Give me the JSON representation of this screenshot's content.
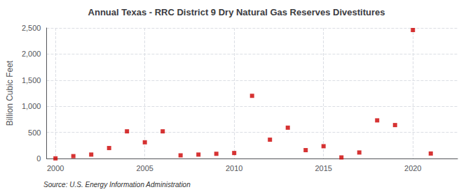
{
  "chart_data": {
    "type": "scatter",
    "title": "Annual Texas - RRC District 9 Dry Natural Gas Reserves Divestitures",
    "ylabel": "Billion Cubic Feet",
    "source": "Source: U.S. Energy Information Administration",
    "x": [
      2000,
      2001,
      2002,
      2003,
      2004,
      2005,
      2006,
      2007,
      2008,
      2009,
      2010,
      2011,
      2012,
      2013,
      2014,
      2015,
      2016,
      2017,
      2018,
      2019,
      2020,
      2021
    ],
    "values": [
      2,
      45,
      75,
      200,
      520,
      310,
      520,
      60,
      75,
      90,
      105,
      1200,
      360,
      590,
      160,
      235,
      20,
      115,
      730,
      640,
      2460,
      95
    ],
    "color": "#cc0000",
    "marker": "square",
    "xlim": [
      1999.5,
      2022.5
    ],
    "xticks": [
      2000,
      2005,
      2010,
      2015,
      2020
    ],
    "ylim": [
      0,
      2500
    ],
    "yticks": [
      0,
      500,
      {
        "value": 1000,
        "label": "1,000"
      },
      {
        "value": 1500,
        "label": "1,500"
      },
      {
        "value": 2000,
        "label": "2,000"
      },
      {
        "value": 2500,
        "label": "2,500"
      }
    ],
    "grid": true
  }
}
